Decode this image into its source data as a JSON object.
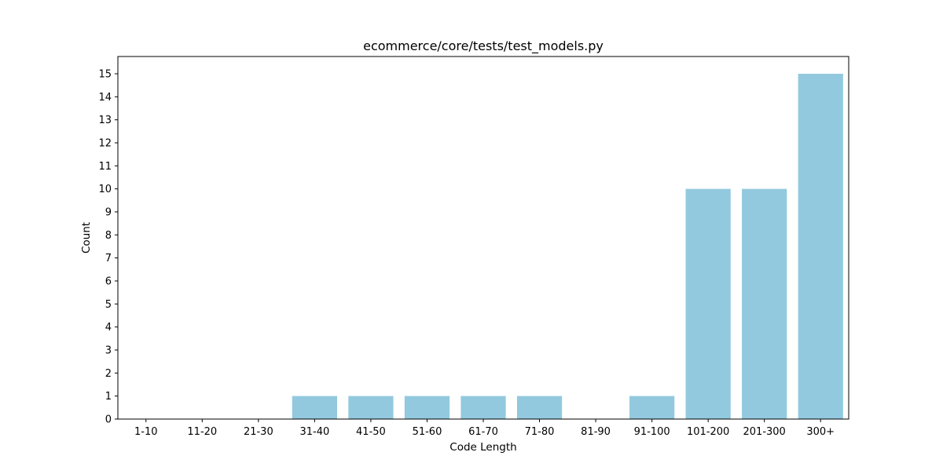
{
  "chart_data": {
    "type": "bar",
    "title": "ecommerce/core/tests/test_models.py",
    "xlabel": "Code Length",
    "ylabel": "Count",
    "categories": [
      "1-10",
      "11-20",
      "21-30",
      "31-40",
      "41-50",
      "51-60",
      "61-70",
      "71-80",
      "81-90",
      "91-100",
      "101-200",
      "201-300",
      "300+"
    ],
    "values": [
      0,
      0,
      0,
      1,
      1,
      1,
      1,
      1,
      0,
      1,
      10,
      10,
      15
    ],
    "ylim": [
      0,
      15.75
    ],
    "yticks": [
      0,
      1,
      2,
      3,
      4,
      5,
      6,
      7,
      8,
      9,
      10,
      11,
      12,
      13,
      14,
      15
    ],
    "grid": false,
    "colors": {
      "bar": "#92c9de",
      "axis": "#000000"
    }
  }
}
